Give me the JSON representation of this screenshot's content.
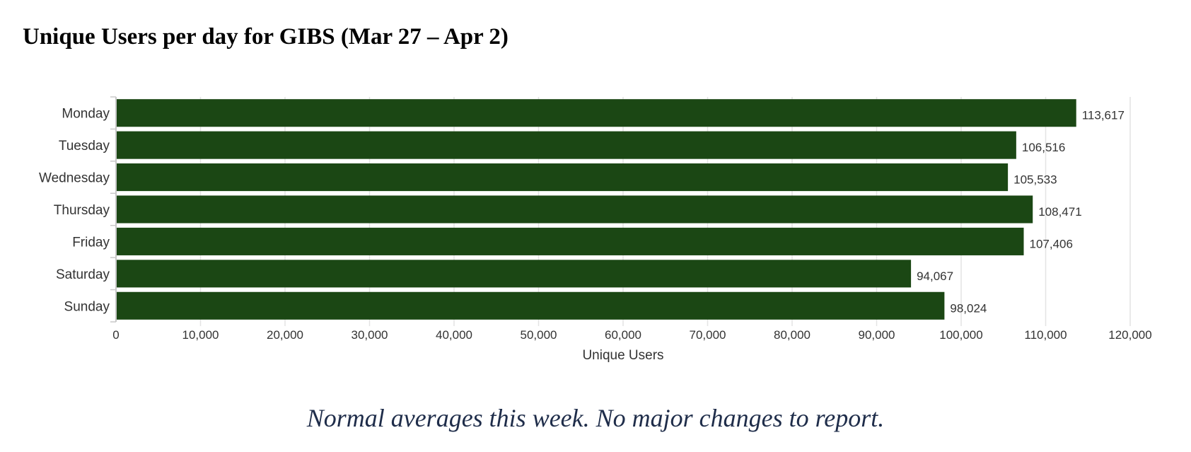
{
  "title": "Unique Users per day for GIBS (Mar 27 – Apr 2)",
  "caption": "Normal averages this week.  No major changes to report.",
  "colors": {
    "bar": "#1b4714",
    "grid": "#e4e4e4",
    "axis": "#c8c8c8",
    "label_text": "#333333",
    "caption_text": "#1f2d4a"
  },
  "chart_data": {
    "type": "bar",
    "orientation": "horizontal",
    "categories": [
      "Monday",
      "Tuesday",
      "Wednesday",
      "Thursday",
      "Friday",
      "Saturday",
      "Sunday"
    ],
    "values": [
      113617,
      106516,
      105533,
      108471,
      107406,
      94067,
      98024
    ],
    "value_labels": [
      "113,617",
      "106,516",
      "105,533",
      "108,471",
      "107,406",
      "94,067",
      "98,024"
    ],
    "xlabel": "Unique Users",
    "ylabel": "",
    "xlim": [
      0,
      120000
    ],
    "ticks": [
      0,
      10000,
      20000,
      30000,
      40000,
      50000,
      60000,
      70000,
      80000,
      90000,
      100000,
      110000,
      120000
    ],
    "tick_labels": [
      "0",
      "10,000",
      "20,000",
      "30,000",
      "40,000",
      "50,000",
      "60,000",
      "70,000",
      "80,000",
      "90,000",
      "100,000",
      "110,000",
      "120,000"
    ],
    "grid": true,
    "legend": "none"
  }
}
